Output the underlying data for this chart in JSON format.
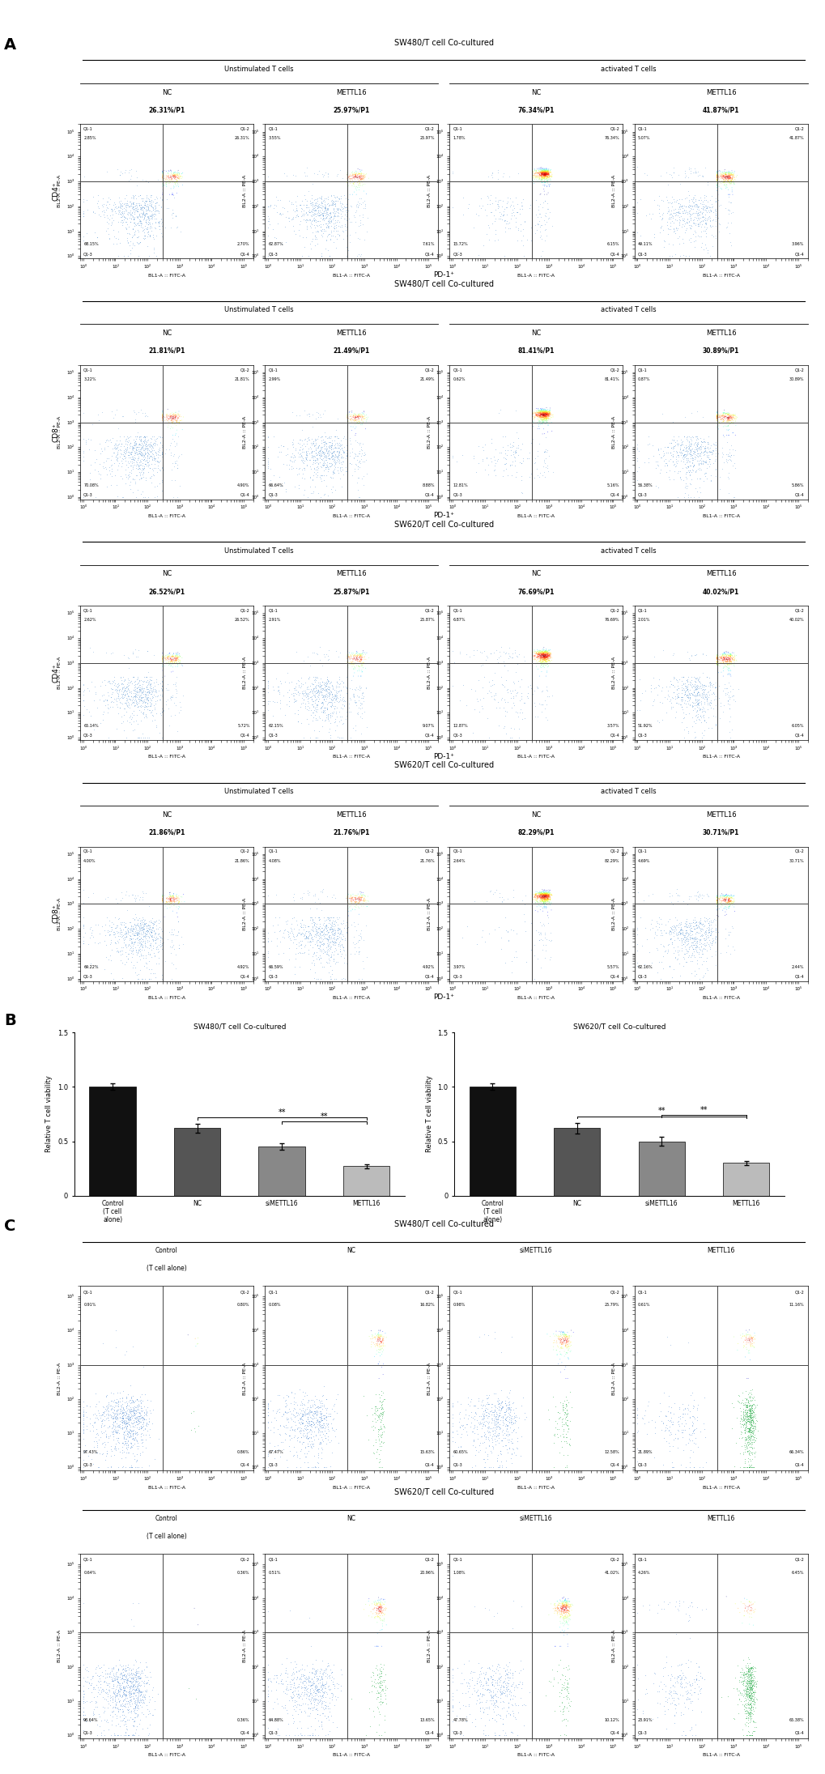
{
  "panel_A": {
    "rows": [
      {
        "title": "SW480/T cell Co-cultured",
        "cd_label": "CD4⁺",
        "sub_groups": [
          {
            "label": "Unstimulated T cells",
            "plots": [
              {
                "name": "NC",
                "pct": "26.31%/P1",
                "q1_1": "2.85%",
                "q1_2": "26.31%",
                "q1_3": "68.15%",
                "q1_4": "2.70%"
              },
              {
                "name": "METTL16",
                "pct": "25.97%/P1",
                "q1_1": "3.55%",
                "q1_2": "25.97%",
                "q1_3": "62.87%",
                "q1_4": "7.61%"
              }
            ]
          },
          {
            "label": "activated T cells",
            "plots": [
              {
                "name": "NC",
                "pct": "76.34%/P1",
                "q1_1": "1.78%",
                "q1_2": "76.34%",
                "q1_3": "15.72%",
                "q1_4": "6.15%"
              },
              {
                "name": "METTL16",
                "pct": "41.87%/P1",
                "q1_1": "5.07%",
                "q1_2": "41.87%",
                "q1_3": "49.11%",
                "q1_4": "3.96%"
              }
            ]
          }
        ]
      },
      {
        "title": "SW480/T cell Co-cultured",
        "cd_label": "CD8⁺",
        "sub_groups": [
          {
            "label": "Unstimulated T cells",
            "plots": [
              {
                "name": "NC",
                "pct": "21.81%/P1",
                "q1_1": "3.22%",
                "q1_2": "21.81%",
                "q1_3": "70.08%",
                "q1_4": "4.90%"
              },
              {
                "name": "METTL16",
                "pct": "21.49%/P1",
                "q1_1": "2.99%",
                "q1_2": "21.49%",
                "q1_3": "66.64%",
                "q1_4": "8.88%"
              }
            ]
          },
          {
            "label": "activated T cells",
            "plots": [
              {
                "name": "NC",
                "pct": "81.41%/P1",
                "q1_1": "0.62%",
                "q1_2": "81.41%",
                "q1_3": "12.81%",
                "q1_4": "5.16%"
              },
              {
                "name": "METTL16",
                "pct": "30.89%/P1",
                "q1_1": "0.87%",
                "q1_2": "30.89%",
                "q1_3": "56.38%",
                "q1_4": "5.86%"
              }
            ]
          }
        ]
      },
      {
        "title": "SW620/T cell Co-cultured",
        "cd_label": "CD4⁺",
        "sub_groups": [
          {
            "label": "Unstimulated T cells",
            "plots": [
              {
                "name": "NC",
                "pct": "26.52%/P1",
                "q1_1": "2.62%",
                "q1_2": "26.52%",
                "q1_3": "65.14%",
                "q1_4": "5.72%"
              },
              {
                "name": "METTL16",
                "pct": "25.87%/P1",
                "q1_1": "2.91%",
                "q1_2": "25.87%",
                "q1_3": "62.15%",
                "q1_4": "9.07%"
              }
            ]
          },
          {
            "label": "activated T cells",
            "plots": [
              {
                "name": "NC",
                "pct": "76.69%/P1",
                "q1_1": "6.87%",
                "q1_2": "76.69%",
                "q1_3": "12.87%",
                "q1_4": "3.57%"
              },
              {
                "name": "METTL16",
                "pct": "40.02%/P1",
                "q1_1": "2.01%",
                "q1_2": "40.02%",
                "q1_3": "51.92%",
                "q1_4": "6.05%"
              }
            ]
          }
        ]
      },
      {
        "title": "SW620/T cell Co-cultured",
        "cd_label": "CD8⁺",
        "sub_groups": [
          {
            "label": "Unstimulated T cells",
            "plots": [
              {
                "name": "NC",
                "pct": "21.86%/P1",
                "q1_1": "4.00%",
                "q1_2": "21.86%",
                "q1_3": "69.22%",
                "q1_4": "4.92%"
              },
              {
                "name": "METTL16",
                "pct": "21.76%/P1",
                "q1_1": "4.08%",
                "q1_2": "21.76%",
                "q1_3": "66.59%",
                "q1_4": "4.92%"
              }
            ]
          },
          {
            "label": "activated T cells",
            "plots": [
              {
                "name": "NC",
                "pct": "82.29%/P1",
                "q1_1": "2.64%",
                "q1_2": "82.29%",
                "q1_3": "3.97%",
                "q1_4": "5.57%"
              },
              {
                "name": "METTL16",
                "pct": "30.71%/P1",
                "q1_1": "4.69%",
                "q1_2": "30.71%",
                "q1_3": "62.16%",
                "q1_4": "2.44%"
              }
            ]
          }
        ]
      }
    ]
  },
  "panel_B": {
    "groups": [
      {
        "title": "SW480/T cell Co-cultured",
        "categories": [
          "Control\n(T cell\nalone)",
          "NC",
          "siMETTL16",
          "METTL16"
        ],
        "values": [
          1.0,
          0.62,
          0.45,
          0.27
        ],
        "errors": [
          0.03,
          0.04,
          0.03,
          0.02
        ]
      },
      {
        "title": "SW620/T cell Co-cultured",
        "categories": [
          "Control\n(T cell\nalone)",
          "NC",
          "siMETTL16",
          "METTL16"
        ],
        "values": [
          1.0,
          0.62,
          0.5,
          0.3
        ],
        "errors": [
          0.03,
          0.05,
          0.04,
          0.02
        ]
      }
    ],
    "ylabel": "Relative T cell viability",
    "bar_colors": [
      "#111111",
      "#555555",
      "#888888",
      "#bbbbbb"
    ]
  },
  "panel_C": {
    "title_sw480": "SW480/T cell Co-cultured",
    "title_sw620": "SW620/T cell Co-cultured",
    "rows": [
      {
        "cell_line": "SW480",
        "plots": [
          {
            "name": "Control\n(T cell alone)",
            "q1_1": "0.91%",
            "q1_2": "0.80%",
            "q1_3": "97.43%",
            "q1_4": "0.86%"
          },
          {
            "name": "NC",
            "q1_1": "0.08%",
            "q1_2": "16.82%",
            "q1_3": "67.47%",
            "q1_4": "15.63%"
          },
          {
            "name": "siMETTL16",
            "q1_1": "0.98%",
            "q1_2": "25.79%",
            "q1_3": "60.65%",
            "q1_4": "12.58%"
          },
          {
            "name": "METTL16",
            "q1_1": "0.61%",
            "q1_2": "11.16%",
            "q1_3": "21.89%",
            "q1_4": "66.34%"
          }
        ]
      },
      {
        "cell_line": "SW620",
        "plots": [
          {
            "name": "Control\n(T cell alone)",
            "q1_1": "0.64%",
            "q1_2": "0.36%",
            "q1_3": "98.64%",
            "q1_4": "0.36%"
          },
          {
            "name": "NC",
            "q1_1": "0.51%",
            "q1_2": "20.96%",
            "q1_3": "64.88%",
            "q1_4": "13.65%"
          },
          {
            "name": "siMETTL16",
            "q1_1": "1.08%",
            "q1_2": "41.02%",
            "q1_3": "47.78%",
            "q1_4": "10.12%"
          },
          {
            "name": "METTL16",
            "q1_1": "4.26%",
            "q1_2": "6.45%",
            "q1_3": "23.91%",
            "q1_4": "65.38%"
          }
        ]
      }
    ]
  }
}
